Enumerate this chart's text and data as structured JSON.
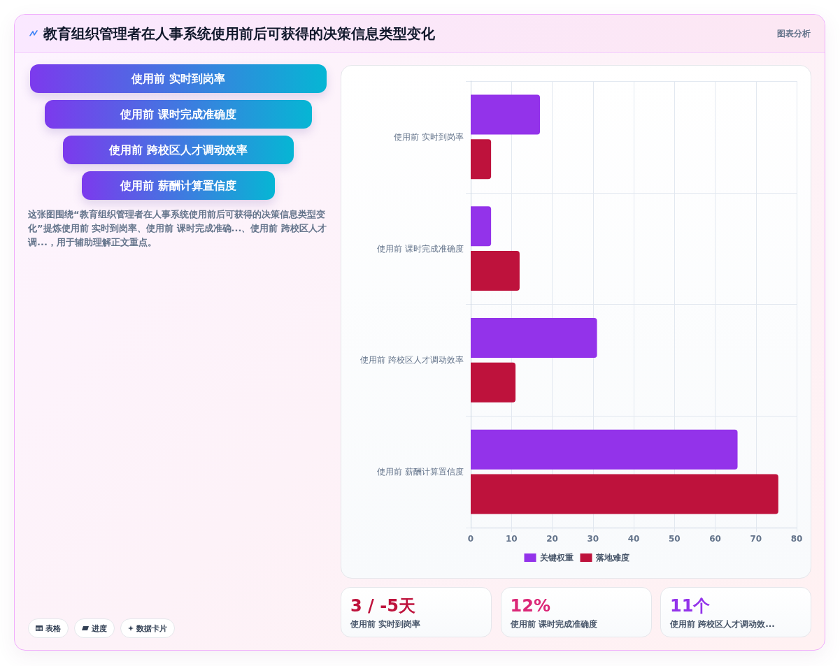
{
  "chart_data": [
    {
      "type": "other",
      "title": "教育组织管理者在人事系统使用前后可获得的决策信息类型变化",
      "annotations": [
        "图表分析"
      ]
    },
    {
      "type": "other",
      "annotations": [
        "使用前 实时到岗率",
        "使用前 课时完成准确度",
        "使用前 跨校区人才调动效率",
        "使用前 薪酬计算置信度",
        "这张图围绕“教育组织管理者在人事系统使用前后可获得的决策信息类型变化”提炼使用前 实时到岗率、使用前 课时完成准确...、使用前 跨校区人才调...，用于辅助理解正文重点。",
        "表格",
        "进度",
        "数据卡片"
      ]
    },
    {
      "type": "bar",
      "orientation": "horizontal",
      "categories": [
        "使用前 实时到岗率",
        "使用前 课时完成准确度",
        "使用前 跨校区人才调动效率",
        "使用前 薪酬计算置信度"
      ],
      "series": [
        {
          "name": "关键权重",
          "color": "#9333ea",
          "values": [
            17,
            5,
            31,
            65.5
          ]
        },
        {
          "name": "落地难度",
          "color": "#be123c",
          "values": [
            5,
            12,
            11,
            75.5
          ]
        }
      ],
      "xlim": [
        0,
        80
      ],
      "xticks": [
        0,
        10,
        20,
        30,
        40,
        50,
        60,
        70,
        80
      ],
      "grid": true,
      "legend": "bottom"
    },
    {
      "type": "other",
      "annotations": [
        "3 / -5天",
        "使用前 实时到岗率",
        "12%",
        "使用前 课时完成准确度",
        "11个",
        "使用前 跨校区人才调动效..."
      ]
    }
  ]
}
